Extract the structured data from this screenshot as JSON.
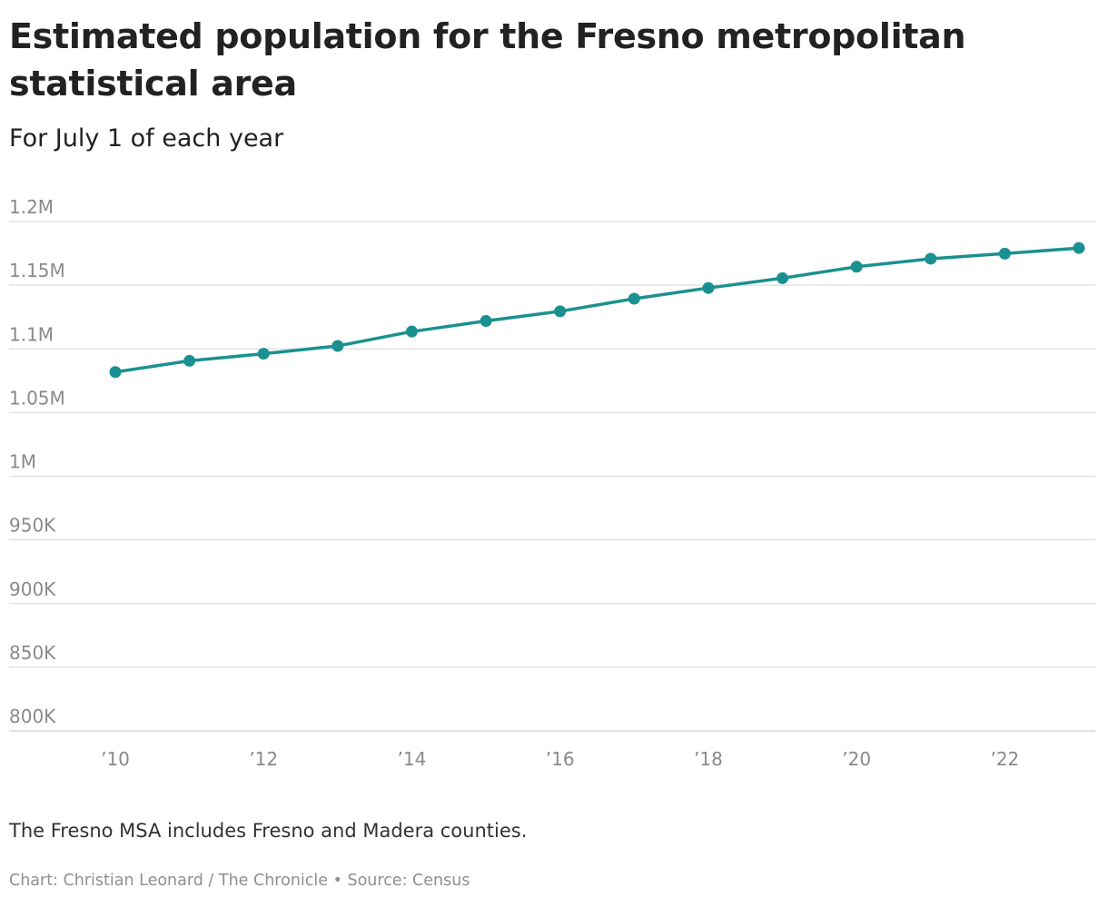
{
  "chart_data": {
    "type": "line",
    "title": "Estimated population for the Fresno metropolitan statistical area",
    "subtitle": "For July 1 of each year",
    "x": [
      2010,
      2011,
      2012,
      2013,
      2014,
      2015,
      2016,
      2017,
      2018,
      2019,
      2020,
      2021,
      2022,
      2023
    ],
    "series": [
      {
        "values": [
          1081800,
          1090600,
          1096200,
          1102300,
          1113600,
          1121900,
          1129500,
          1139400,
          1147800,
          1155500,
          1164500,
          1170800,
          1174800,
          1179200
        ]
      }
    ],
    "x_ticks": [
      {
        "value": 2010,
        "label": "’10"
      },
      {
        "value": 2012,
        "label": "’12"
      },
      {
        "value": 2014,
        "label": "’14"
      },
      {
        "value": 2016,
        "label": "’16"
      },
      {
        "value": 2018,
        "label": "’18"
      },
      {
        "value": 2020,
        "label": "’20"
      },
      {
        "value": 2022,
        "label": "’22"
      }
    ],
    "y_ticks": [
      {
        "value": 1200000,
        "label": "1.2M"
      },
      {
        "value": 1150000,
        "label": "1.15M"
      },
      {
        "value": 1100000,
        "label": "1.1M"
      },
      {
        "value": 1050000,
        "label": "1.05M"
      },
      {
        "value": 1000000,
        "label": "1M"
      },
      {
        "value": 950000,
        "label": "950K"
      },
      {
        "value": 900000,
        "label": "900K"
      },
      {
        "value": 850000,
        "label": "850K"
      },
      {
        "value": 800000,
        "label": "800K"
      }
    ],
    "ylim": [
      800000,
      1200000
    ],
    "xlim": [
      2010,
      2023
    ],
    "grid": true,
    "line_color": "#1a9190",
    "grid_color": "#dddddd",
    "note": "The Fresno MSA includes Fresno and Madera counties.",
    "credit": "Chart: Christian Leonard / The Chronicle • Source: Census"
  }
}
